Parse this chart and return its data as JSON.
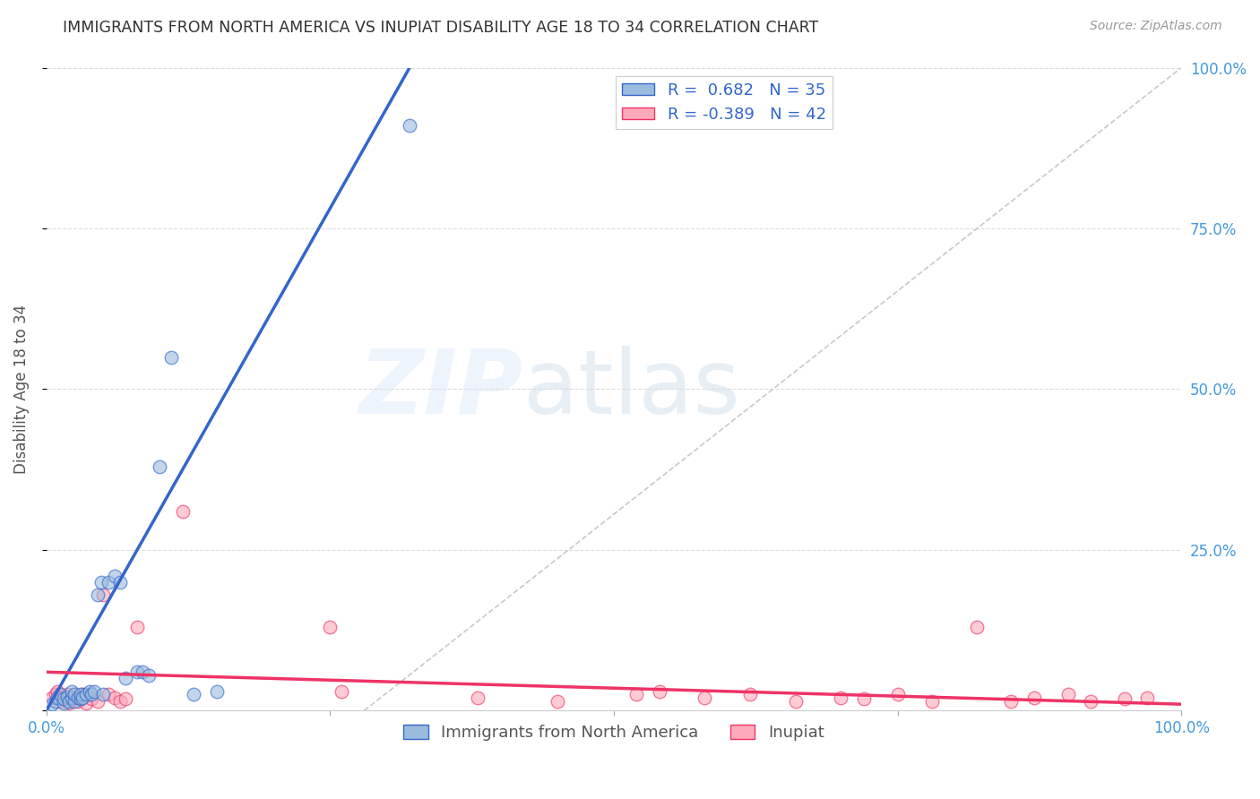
{
  "title": "IMMIGRANTS FROM NORTH AMERICA VS INUPIAT DISABILITY AGE 18 TO 34 CORRELATION CHART",
  "source": "Source: ZipAtlas.com",
  "ylabel": "Disability Age 18 to 34",
  "xlim": [
    0,
    1
  ],
  "ylim": [
    0,
    1
  ],
  "watermark": "ZIPatlas",
  "blue_color": "#99BBDD",
  "pink_color": "#FFAABB",
  "blue_line_color": "#3366CC",
  "pink_line_color": "#EE3366",
  "diag_color": "#BBBBBB",
  "title_color": "#333333",
  "source_color": "#999999",
  "axis_label_color": "#4499DD",
  "background_color": "#FFFFFF",
  "grid_color": "#DDDDDD",
  "blue_scatter_x": [
    0.005,
    0.008,
    0.01,
    0.012,
    0.015,
    0.015,
    0.018,
    0.02,
    0.022,
    0.022,
    0.025,
    0.025,
    0.028,
    0.03,
    0.03,
    0.032,
    0.035,
    0.038,
    0.04,
    0.042,
    0.045,
    0.048,
    0.05,
    0.055,
    0.06,
    0.065,
    0.07,
    0.08,
    0.085,
    0.09,
    0.1,
    0.11,
    0.13,
    0.15,
    0.32
  ],
  "blue_scatter_y": [
    0.01,
    0.015,
    0.02,
    0.025,
    0.012,
    0.018,
    0.022,
    0.015,
    0.02,
    0.03,
    0.015,
    0.025,
    0.02,
    0.018,
    0.025,
    0.02,
    0.025,
    0.03,
    0.025,
    0.03,
    0.18,
    0.2,
    0.025,
    0.2,
    0.21,
    0.2,
    0.05,
    0.06,
    0.06,
    0.055,
    0.38,
    0.55,
    0.025,
    0.03,
    0.91
  ],
  "pink_scatter_x": [
    0.005,
    0.008,
    0.01,
    0.012,
    0.015,
    0.018,
    0.02,
    0.022,
    0.025,
    0.028,
    0.03,
    0.032,
    0.035,
    0.04,
    0.045,
    0.05,
    0.055,
    0.06,
    0.065,
    0.07,
    0.08,
    0.12,
    0.25,
    0.26,
    0.38,
    0.45,
    0.52,
    0.54,
    0.58,
    0.62,
    0.66,
    0.7,
    0.72,
    0.75,
    0.78,
    0.82,
    0.85,
    0.87,
    0.9,
    0.92,
    0.95,
    0.97
  ],
  "pink_scatter_y": [
    0.02,
    0.025,
    0.03,
    0.015,
    0.02,
    0.025,
    0.012,
    0.018,
    0.022,
    0.015,
    0.02,
    0.025,
    0.012,
    0.018,
    0.015,
    0.18,
    0.025,
    0.02,
    0.015,
    0.018,
    0.13,
    0.31,
    0.13,
    0.03,
    0.02,
    0.015,
    0.025,
    0.03,
    0.02,
    0.025,
    0.015,
    0.02,
    0.018,
    0.025,
    0.015,
    0.13,
    0.015,
    0.02,
    0.025,
    0.015,
    0.018,
    0.02
  ],
  "blue_line_x": [
    0.0,
    0.32
  ],
  "blue_line_y": [
    0.0,
    1.0
  ],
  "pink_line_x": [
    0.0,
    1.0
  ],
  "pink_line_y": [
    0.06,
    0.01
  ],
  "diag_line_x": [
    0.28,
    1.0
  ],
  "diag_line_y": [
    0.0,
    1.0
  ]
}
